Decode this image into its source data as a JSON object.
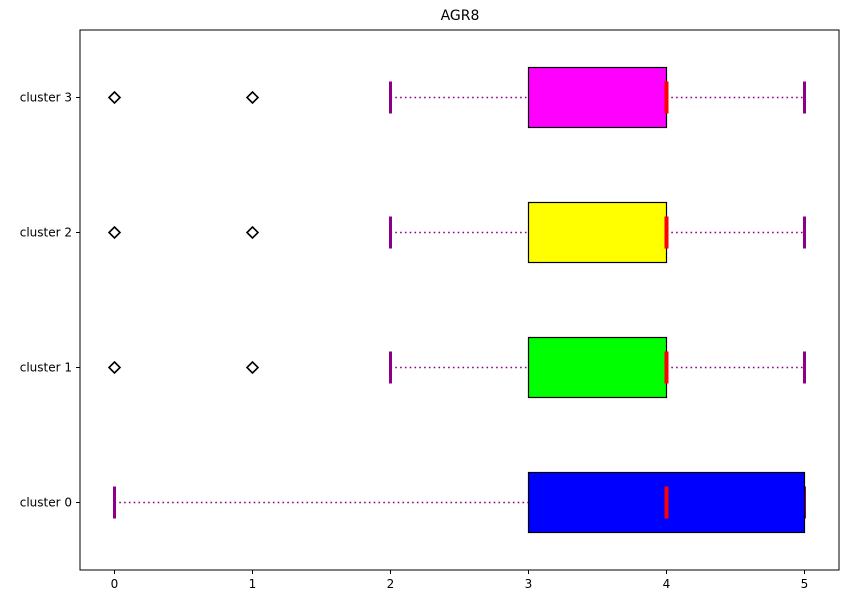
{
  "chart_data": {
    "type": "boxplot",
    "orientation": "horizontal",
    "title": "AGR8",
    "xlabel": "",
    "ylabel": "",
    "xlim": [
      -0.25,
      5.25
    ],
    "xticks": [
      0,
      1,
      2,
      3,
      4,
      5
    ],
    "grid": false,
    "categories": [
      "cluster 0",
      "cluster 1",
      "cluster 2",
      "cluster 3"
    ],
    "series": [
      {
        "category": "cluster 0",
        "whisker_low": 0,
        "q1": 3,
        "median": 4,
        "q3": 5,
        "whisker_high": 5,
        "outliers": [],
        "color": "#0000ff"
      },
      {
        "category": "cluster 1",
        "whisker_low": 2,
        "q1": 3,
        "median": 4,
        "q3": 4,
        "whisker_high": 5,
        "outliers": [
          0,
          1
        ],
        "color": "#00ff00"
      },
      {
        "category": "cluster 2",
        "whisker_low": 2,
        "q1": 3,
        "median": 4,
        "q3": 4,
        "whisker_high": 5,
        "outliers": [
          0,
          1
        ],
        "color": "#ffff00"
      },
      {
        "category": "cluster 3",
        "whisker_low": 2,
        "q1": 3,
        "median": 4,
        "q3": 4,
        "whisker_high": 5,
        "outliers": [
          0,
          1
        ],
        "color": "#ff00ff"
      }
    ],
    "styles": {
      "whisker_color": "#8b008b",
      "whisker_style": "dotted",
      "median_color": "#ff0000",
      "box_edge_color": "#000000",
      "outlier_marker": "diamond"
    }
  }
}
